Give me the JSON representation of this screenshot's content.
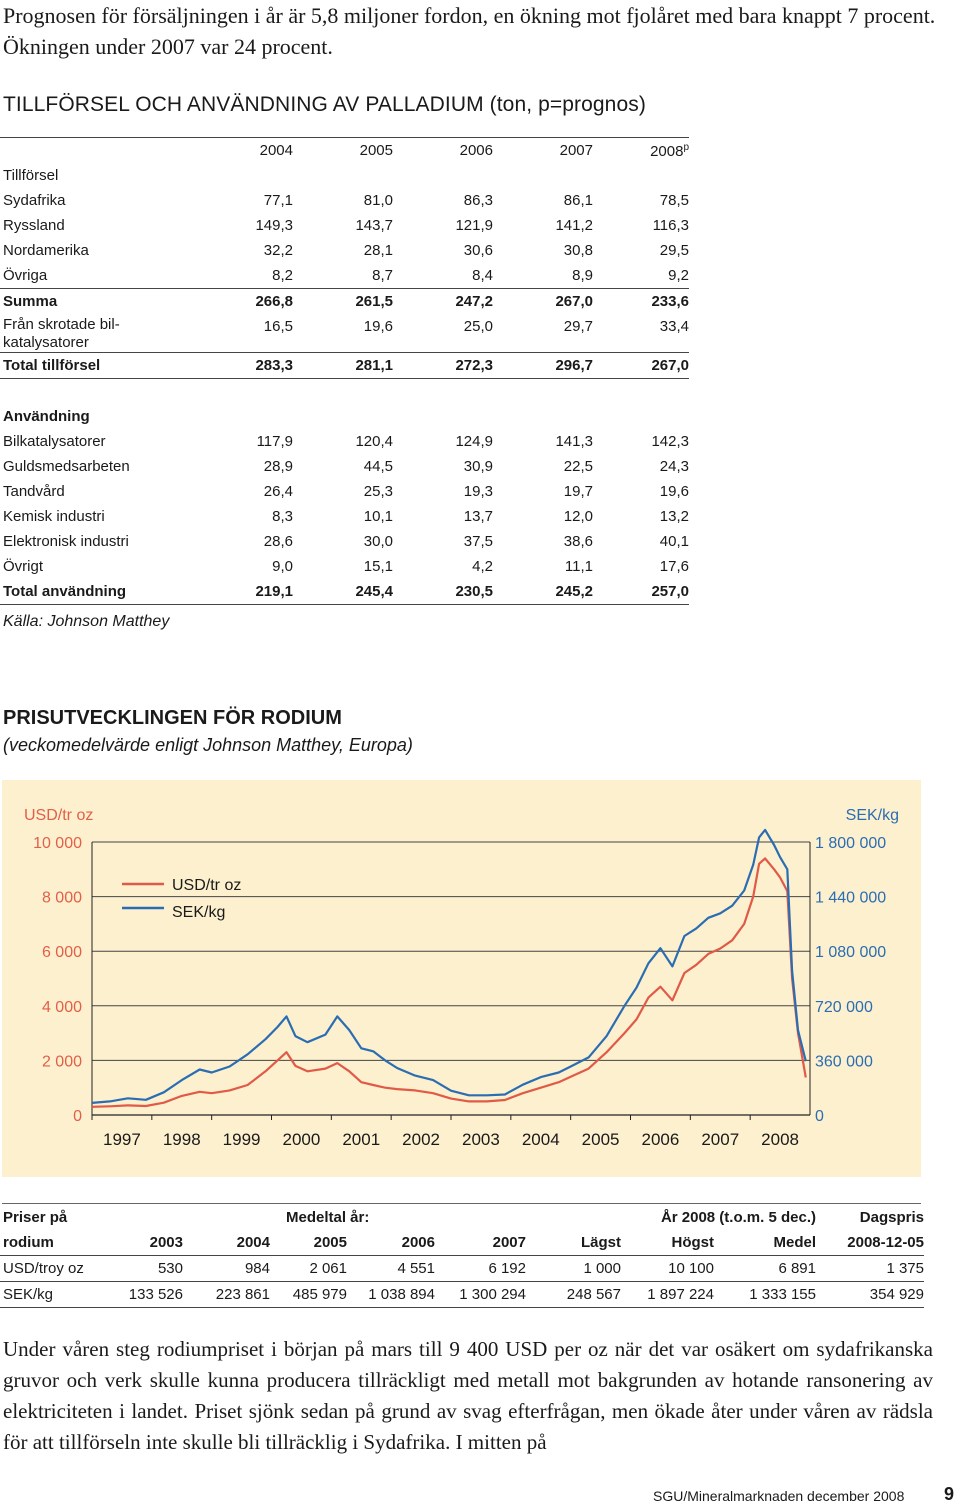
{
  "intro_text": "Prognosen för försäljningen i år är 5,8 miljoner fordon, en ökning mot fjolåret med bara knappt 7 procent. Ökningen under 2007 var 24 procent.",
  "palladium": {
    "title": "TILLFÖRSEL OCH ANVÄNDNING AV PALLADIUM (ton, p=prognos)",
    "years": [
      "2004",
      "2005",
      "2006",
      "2007",
      "2008"
    ],
    "prognosis_mark": "p",
    "supply_header": "Tillförsel",
    "supply_rows": [
      {
        "label": "Sydafrika",
        "values": [
          "77,1",
          "81,0",
          "86,3",
          "86,1",
          "78,5"
        ]
      },
      {
        "label": "Ryssland",
        "values": [
          "149,3",
          "143,7",
          "121,9",
          "141,2",
          "116,3"
        ]
      },
      {
        "label": "Nordamerika",
        "values": [
          "32,2",
          "28,1",
          "30,6",
          "30,8",
          "29,5"
        ]
      },
      {
        "label": "Övriga",
        "values": [
          "8,2",
          "8,7",
          "8,4",
          "8,9",
          "9,2"
        ]
      }
    ],
    "summa": {
      "label": "Summa",
      "values": [
        "266,8",
        "261,5",
        "247,2",
        "267,0",
        "233,6"
      ]
    },
    "scrap": {
      "label_line1": "Från skrotade bil-",
      "label_line2": "katalysatorer",
      "values": [
        "16,5",
        "19,6",
        "25,0",
        "29,7",
        "33,4"
      ]
    },
    "total_supply": {
      "label": "Total tillförsel",
      "values": [
        "283,3",
        "281,1",
        "272,3",
        "296,7",
        "267,0"
      ]
    },
    "use_header": "Användning",
    "use_rows": [
      {
        "label": "Bilkatalysatorer",
        "values": [
          "117,9",
          "120,4",
          "124,9",
          "141,3",
          "142,3"
        ]
      },
      {
        "label": "Guldsmedsarbeten",
        "values": [
          "28,9",
          "44,5",
          "30,9",
          "22,5",
          "24,3"
        ]
      },
      {
        "label": "Tandvård",
        "values": [
          "26,4",
          "25,3",
          "19,3",
          "19,7",
          "19,6"
        ]
      },
      {
        "label": "Kemisk industri",
        "values": [
          "8,3",
          "10,1",
          "13,7",
          "12,0",
          "13,2"
        ]
      },
      {
        "label": "Elektronisk industri",
        "values": [
          "28,6",
          "30,0",
          "37,5",
          "38,6",
          "40,1"
        ]
      },
      {
        "label": "Övrigt",
        "values": [
          "9,0",
          "15,1",
          "4,2",
          "11,1",
          "17,6"
        ]
      }
    ],
    "total_use": {
      "label": "Total användning",
      "values": [
        "219,1",
        "245,4",
        "230,5",
        "245,2",
        "257,0"
      ]
    },
    "source": "Källa: Johnson Matthey"
  },
  "rhodium_chart": {
    "title": "PRISUTVECKLINGEN FÖR RODIUM",
    "subtitle": "(veckomedelvärde enligt Johnson Matthey, Europa)",
    "colors": {
      "usd": "#e05a47",
      "sek": "#2a6db2",
      "axis_text": "#e25f48",
      "background": "#fdf0cf"
    },
    "chart_data": {
      "type": "line",
      "left_unit": "USD/tr oz",
      "right_unit": "SEK/kg",
      "left_ticks": [
        "10 000",
        "8 000",
        "6 000",
        "4 000",
        "2 000",
        "0"
      ],
      "right_ticks": [
        "1 800 000",
        "1 440 000",
        "1 080 000",
        "720 000",
        "360 000",
        "0"
      ],
      "ylim_left": [
        0,
        10000
      ],
      "ylim_right": [
        0,
        1800000
      ],
      "x_ticks": [
        "1997",
        "1998",
        "1999",
        "2000",
        "2001",
        "2002",
        "2003",
        "2004",
        "2005",
        "2006",
        "2007",
        "2008"
      ],
      "xlim": [
        1997.0,
        2009.0
      ],
      "grid": "horizontal",
      "legend": "top-left",
      "series": [
        {
          "name": "USD/tr oz",
          "axis": "left",
          "points": [
            [
              1997.0,
              300
            ],
            [
              1997.3,
              320
            ],
            [
              1997.6,
              350
            ],
            [
              1997.9,
              330
            ],
            [
              1998.2,
              450
            ],
            [
              1998.5,
              700
            ],
            [
              1998.8,
              850
            ],
            [
              1999.0,
              800
            ],
            [
              1999.3,
              900
            ],
            [
              1999.6,
              1100
            ],
            [
              1999.9,
              1600
            ],
            [
              2000.1,
              2000
            ],
            [
              2000.25,
              2300
            ],
            [
              2000.4,
              1800
            ],
            [
              2000.6,
              1600
            ],
            [
              2000.9,
              1700
            ],
            [
              2001.1,
              1900
            ],
            [
              2001.3,
              1600
            ],
            [
              2001.5,
              1200
            ],
            [
              2001.7,
              1100
            ],
            [
              2001.9,
              1000
            ],
            [
              2002.1,
              950
            ],
            [
              2002.4,
              900
            ],
            [
              2002.7,
              800
            ],
            [
              2003.0,
              600
            ],
            [
              2003.3,
              500
            ],
            [
              2003.6,
              500
            ],
            [
              2003.9,
              550
            ],
            [
              2004.2,
              800
            ],
            [
              2004.5,
              1000
            ],
            [
              2004.8,
              1200
            ],
            [
              2005.0,
              1400
            ],
            [
              2005.3,
              1700
            ],
            [
              2005.6,
              2300
            ],
            [
              2005.9,
              3000
            ],
            [
              2006.1,
              3500
            ],
            [
              2006.3,
              4300
            ],
            [
              2006.5,
              4700
            ],
            [
              2006.7,
              4200
            ],
            [
              2006.9,
              5200
            ],
            [
              2007.1,
              5500
            ],
            [
              2007.3,
              5900
            ],
            [
              2007.5,
              6100
            ],
            [
              2007.7,
              6400
            ],
            [
              2007.9,
              7000
            ],
            [
              2008.05,
              8000
            ],
            [
              2008.15,
              9200
            ],
            [
              2008.25,
              9400
            ],
            [
              2008.4,
              9000
            ],
            [
              2008.5,
              8700
            ],
            [
              2008.62,
              8200
            ],
            [
              2008.7,
              5000
            ],
            [
              2008.8,
              3000
            ],
            [
              2008.93,
              1375
            ]
          ]
        },
        {
          "name": "SEK/kg",
          "axis": "right",
          "points": [
            [
              1997.0,
              80000
            ],
            [
              1997.3,
              90000
            ],
            [
              1997.6,
              110000
            ],
            [
              1997.9,
              100000
            ],
            [
              1998.2,
              150000
            ],
            [
              1998.5,
              230000
            ],
            [
              1998.8,
              300000
            ],
            [
              1999.0,
              280000
            ],
            [
              1999.3,
              320000
            ],
            [
              1999.6,
              400000
            ],
            [
              1999.9,
              500000
            ],
            [
              2000.1,
              580000
            ],
            [
              2000.25,
              650000
            ],
            [
              2000.4,
              520000
            ],
            [
              2000.6,
              480000
            ],
            [
              2000.9,
              530000
            ],
            [
              2001.1,
              650000
            ],
            [
              2001.3,
              560000
            ],
            [
              2001.5,
              440000
            ],
            [
              2001.7,
              420000
            ],
            [
              2001.9,
              360000
            ],
            [
              2002.1,
              310000
            ],
            [
              2002.4,
              260000
            ],
            [
              2002.7,
              230000
            ],
            [
              2003.0,
              160000
            ],
            [
              2003.3,
              130000
            ],
            [
              2003.6,
              130000
            ],
            [
              2003.9,
              135000
            ],
            [
              2004.2,
              200000
            ],
            [
              2004.5,
              250000
            ],
            [
              2004.8,
              280000
            ],
            [
              2005.0,
              320000
            ],
            [
              2005.3,
              380000
            ],
            [
              2005.6,
              520000
            ],
            [
              2005.9,
              720000
            ],
            [
              2006.1,
              840000
            ],
            [
              2006.3,
              1000000
            ],
            [
              2006.5,
              1100000
            ],
            [
              2006.7,
              980000
            ],
            [
              2006.9,
              1180000
            ],
            [
              2007.1,
              1230000
            ],
            [
              2007.3,
              1300000
            ],
            [
              2007.5,
              1330000
            ],
            [
              2007.7,
              1380000
            ],
            [
              2007.9,
              1480000
            ],
            [
              2008.05,
              1650000
            ],
            [
              2008.15,
              1830000
            ],
            [
              2008.25,
              1880000
            ],
            [
              2008.4,
              1780000
            ],
            [
              2008.5,
              1700000
            ],
            [
              2008.62,
              1620000
            ],
            [
              2008.7,
              950000
            ],
            [
              2008.8,
              560000
            ],
            [
              2008.93,
              354929
            ]
          ]
        }
      ]
    }
  },
  "rhodium_prices": {
    "header1": [
      "Priser på",
      "Medeltal år:",
      "År 2008 (t.o.m. 5 dec.)",
      "Dagspris"
    ],
    "header2": [
      "rodium",
      "2003",
      "2004",
      "2005",
      "2006",
      "2007",
      "Lägst",
      "Högst",
      "Medel",
      "2008-12-05"
    ],
    "rows": [
      [
        "USD/troy oz",
        "530",
        "984",
        "2 061",
        "4 551",
        "6 192",
        "1 000",
        "10 100",
        "6 891",
        "1 375"
      ],
      [
        "SEK/kg",
        "133 526",
        "223 861",
        "485 979",
        "1 038 894",
        "1 300 294",
        "248 567",
        "1 897 224",
        "1 333 155",
        "354 929"
      ]
    ]
  },
  "outro_text": "Under våren steg rodiumpriset i början på mars till 9 400 USD per oz när det var osäkert om sydafrikanska gruvor och verk skulle kunna producera tillräckligt med metall mot bakgrunden av hotande ransonering av elektriciteten i landet. Priset sjönk sedan på grund av svag efterfrågan, men ökade åter under våren av rädsla för att tillförseln inte skulle bli tillräcklig i Sydafrika. I mitten på",
  "footer": "SGU/Mineralmarknaden december 2008",
  "page_number": "9"
}
